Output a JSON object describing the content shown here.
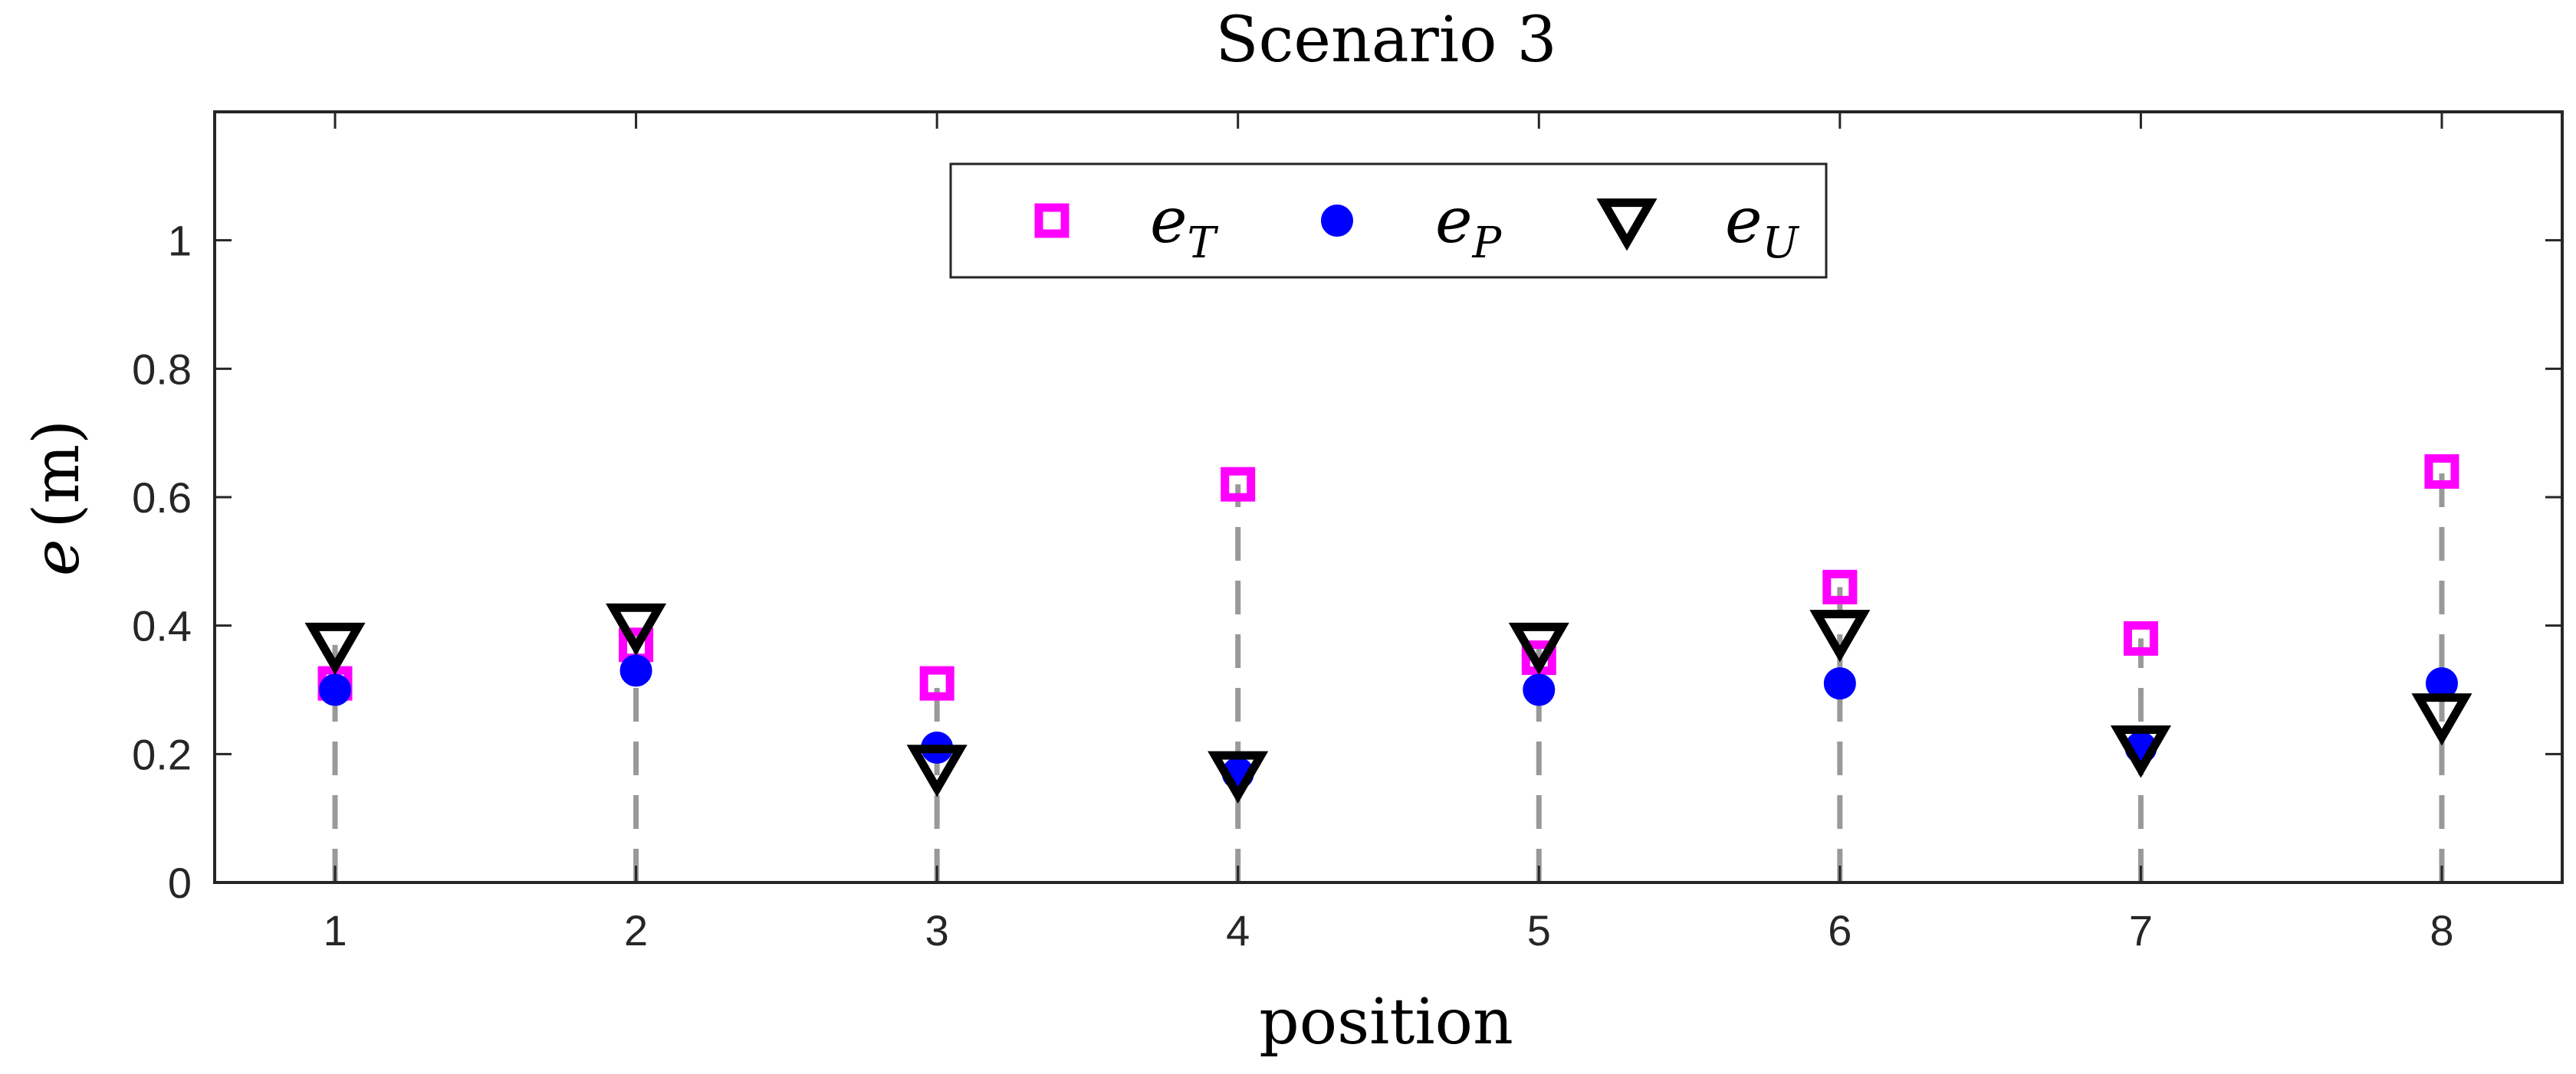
{
  "chart_data": {
    "type": "scatter",
    "title": "Scenario 3",
    "xlabel": "position",
    "ylabel_symbol": "e",
    "ylabel_unit": "(m)",
    "x": [
      1,
      2,
      3,
      4,
      5,
      6,
      7,
      8
    ],
    "xlim": [
      0.6,
      8.4
    ],
    "ylim": [
      0,
      1.2
    ],
    "xticks": [
      "1",
      "2",
      "3",
      "4",
      "5",
      "6",
      "7",
      "8"
    ],
    "yticks": [
      0,
      0.2,
      0.4,
      0.6,
      0.8,
      1
    ],
    "ytick_labels": [
      "0",
      "0.2",
      "0.4",
      "0.6",
      "0.8",
      "1"
    ],
    "legend_position": "top-center",
    "series": [
      {
        "symbol": "e",
        "subscript": "T",
        "marker": "square",
        "color": "#ff00ff",
        "values": [
          0.31,
          0.37,
          0.31,
          0.62,
          0.35,
          0.46,
          0.38,
          0.64
        ]
      },
      {
        "symbol": "e",
        "subscript": "P",
        "marker": "circle",
        "color": "#0000ff",
        "values": [
          0.3,
          0.33,
          0.21,
          0.17,
          0.3,
          0.31,
          0.21,
          0.31
        ]
      },
      {
        "symbol": "e",
        "subscript": "U",
        "marker": "triangle-down",
        "color": "#000000",
        "values": [
          0.37,
          0.4,
          0.18,
          0.17,
          0.37,
          0.39,
          0.21,
          0.26
        ]
      }
    ],
    "stem_color": "#999999"
  }
}
